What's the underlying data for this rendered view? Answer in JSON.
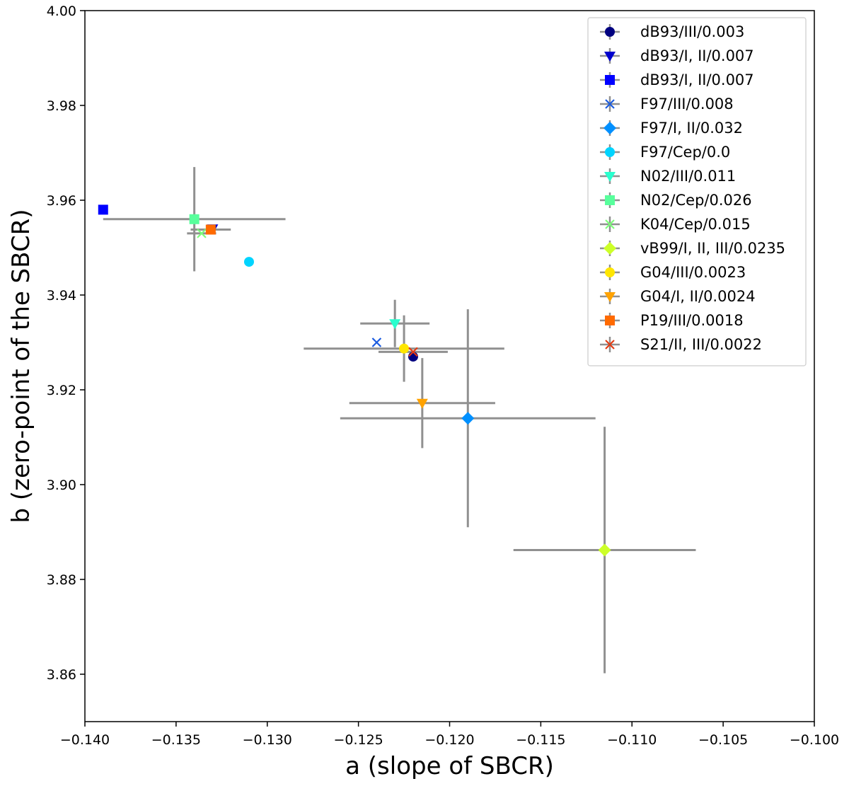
{
  "chart_data": {
    "type": "scatter",
    "title": "",
    "xlabel": "a (slope of SBCR)",
    "ylabel": "b (zero-point of the SBCR)",
    "xlim": [
      -0.14,
      -0.1
    ],
    "ylim": [
      3.85,
      4.0
    ],
    "grid": false,
    "legend_position": "top-right",
    "x_ticks": [
      -0.14,
      -0.135,
      -0.13,
      -0.125,
      -0.12,
      -0.115,
      -0.11,
      -0.105,
      -0.1
    ],
    "x_tick_labels": [
      "−0.140",
      "−0.135",
      "−0.130",
      "−0.125",
      "−0.120",
      "−0.115",
      "−0.110",
      "−0.105",
      "−0.100"
    ],
    "y_ticks": [
      3.86,
      3.88,
      3.9,
      3.92,
      3.94,
      3.96,
      3.98,
      4.0
    ],
    "y_tick_labels": [
      "3.86",
      "3.88",
      "3.90",
      "3.92",
      "3.94",
      "3.96",
      "3.98",
      "4.00"
    ],
    "series": [
      {
        "name": "dB93/III/0.003",
        "marker": "circle",
        "color": "#000080",
        "x": -0.122,
        "y": 3.927,
        "xerr": null,
        "yerr": null
      },
      {
        "name": "dB93/I, II/0.007",
        "marker": "triangle-down",
        "color": "#0000cd",
        "x": -0.133,
        "y": 3.954,
        "xerr": null,
        "yerr": null
      },
      {
        "name": "dB93/I, II/0.007",
        "marker": "square",
        "color": "#0000ff",
        "x": -0.139,
        "y": 3.958,
        "xerr": null,
        "yerr": null
      },
      {
        "name": "F97/III/0.008",
        "marker": "x",
        "color": "#1c5ce0",
        "x": -0.124,
        "y": 3.93,
        "xerr": null,
        "yerr": null
      },
      {
        "name": "F97/I, II/0.032",
        "marker": "diamond",
        "color": "#0090ff",
        "x": -0.119,
        "y": 3.914,
        "xerr": 0.007,
        "yerr": 0.023
      },
      {
        "name": "F97/Cep/0.0",
        "marker": "circle",
        "color": "#00d4ff",
        "x": -0.131,
        "y": 3.947,
        "xerr": null,
        "yerr": null
      },
      {
        "name": "N02/III/0.011",
        "marker": "triangle-down",
        "color": "#29ffce",
        "x": -0.123,
        "y": 3.934,
        "xerr": 0.0019,
        "yerr": 0.005
      },
      {
        "name": "N02/Cep/0.026",
        "marker": "square",
        "color": "#58ff9c",
        "x": -0.134,
        "y": 3.956,
        "xerr": 0.005,
        "yerr": 0.011
      },
      {
        "name": "K04/Cep/0.015",
        "marker": "x",
        "color": "#7dff7a",
        "x": -0.1336,
        "y": 3.953,
        "xerr": 0.0008,
        "yerr": null
      },
      {
        "name": "vB99/I, II, III/0.0235",
        "marker": "diamond",
        "color": "#cdff29",
        "x": -0.1115,
        "y": 3.8862,
        "xerr": 0.005,
        "yerr": 0.026
      },
      {
        "name": "G04/III/0.0023",
        "marker": "circle",
        "color": "#ffe600",
        "x": -0.1225,
        "y": 3.9287,
        "xerr": 0.0055,
        "yerr": 0.007
      },
      {
        "name": "G04/I, II/0.0024",
        "marker": "triangle-down",
        "color": "#ffa200",
        "x": -0.1215,
        "y": 3.9172,
        "xerr": 0.004,
        "yerr": 0.0095
      },
      {
        "name": "P19/III/0.0018",
        "marker": "square",
        "color": "#ff6a00",
        "x": -0.1331,
        "y": 3.9538,
        "xerr": 0.0011,
        "yerr": null
      },
      {
        "name": "S21/II, III/0.0022",
        "marker": "x",
        "color": "#e43b12",
        "x": -0.122,
        "y": 3.928,
        "xerr": 0.0019,
        "yerr": null
      }
    ]
  }
}
